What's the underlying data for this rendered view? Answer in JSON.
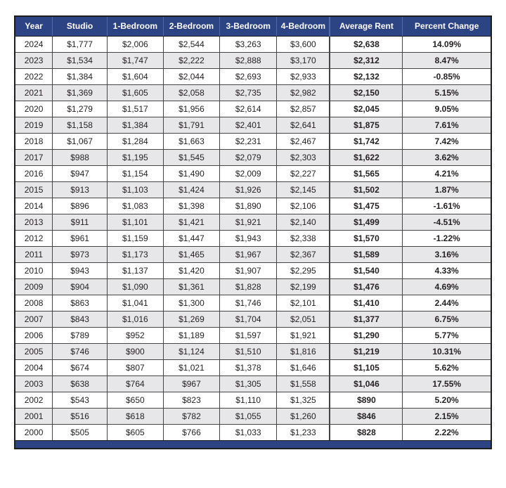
{
  "colors": {
    "header_bg": "#2c4384",
    "header_divider": "#5568a8",
    "row_alt_bg": "#e7e7ea",
    "grid_line": "#454545",
    "outer_border": "#1d1d1f",
    "text": "#231f20",
    "footer_bar": "#2c4384"
  },
  "chart_data": {
    "type": "table",
    "columns": [
      "Year",
      "Studio",
      "1-Bedroom",
      "2-Bedroom",
      "3-Bedroom",
      "4-Bedroom",
      "Average Rent",
      "Percent Change"
    ],
    "rows": [
      [
        "2024",
        "$1,777",
        "$2,006",
        "$2,544",
        "$3,263",
        "$3,600",
        "$2,638",
        "14.09%"
      ],
      [
        "2023",
        "$1,534",
        "$1,747",
        "$2,222",
        "$2,888",
        "$3,170",
        "$2,312",
        "8.47%"
      ],
      [
        "2022",
        "$1,384",
        "$1,604",
        "$2,044",
        "$2,693",
        "$2,933",
        "$2,132",
        "-0.85%"
      ],
      [
        "2021",
        "$1,369",
        "$1,605",
        "$2,058",
        "$2,735",
        "$2,982",
        "$2,150",
        "5.15%"
      ],
      [
        "2020",
        "$1,279",
        "$1,517",
        "$1,956",
        "$2,614",
        "$2,857",
        "$2,045",
        "9.05%"
      ],
      [
        "2019",
        "$1,158",
        "$1,384",
        "$1,791",
        "$2,401",
        "$2,641",
        "$1,875",
        "7.61%"
      ],
      [
        "2018",
        "$1,067",
        "$1,284",
        "$1,663",
        "$2,231",
        "$2,467",
        "$1,742",
        "7.42%"
      ],
      [
        "2017",
        "$988",
        "$1,195",
        "$1,545",
        "$2,079",
        "$2,303",
        "$1,622",
        "3.62%"
      ],
      [
        "2016",
        "$947",
        "$1,154",
        "$1,490",
        "$2,009",
        "$2,227",
        "$1,565",
        "4.21%"
      ],
      [
        "2015",
        "$913",
        "$1,103",
        "$1,424",
        "$1,926",
        "$2,145",
        "$1,502",
        "1.87%"
      ],
      [
        "2014",
        "$896",
        "$1,083",
        "$1,398",
        "$1,890",
        "$2,106",
        "$1,475",
        "-1.61%"
      ],
      [
        "2013",
        "$911",
        "$1,101",
        "$1,421",
        "$1,921",
        "$2,140",
        "$1,499",
        "-4.51%"
      ],
      [
        "2012",
        "$961",
        "$1,159",
        "$1,447",
        "$1,943",
        "$2,338",
        "$1,570",
        "-1.22%"
      ],
      [
        "2011",
        "$973",
        "$1,173",
        "$1,465",
        "$1,967",
        "$2,367",
        "$1,589",
        "3.16%"
      ],
      [
        "2010",
        "$943",
        "$1,137",
        "$1,420",
        "$1,907",
        "$2,295",
        "$1,540",
        "4.33%"
      ],
      [
        "2009",
        "$904",
        "$1,090",
        "$1,361",
        "$1,828",
        "$2,199",
        "$1,476",
        "4.69%"
      ],
      [
        "2008",
        "$863",
        "$1,041",
        "$1,300",
        "$1,746",
        "$2,101",
        "$1,410",
        "2.44%"
      ],
      [
        "2007",
        "$843",
        "$1,016",
        "$1,269",
        "$1,704",
        "$2,051",
        "$1,377",
        "6.75%"
      ],
      [
        "2006",
        "$789",
        "$952",
        "$1,189",
        "$1,597",
        "$1,921",
        "$1,290",
        "5.77%"
      ],
      [
        "2005",
        "$746",
        "$900",
        "$1,124",
        "$1,510",
        "$1,816",
        "$1,219",
        "10.31%"
      ],
      [
        "2004",
        "$674",
        "$807",
        "$1,021",
        "$1,378",
        "$1,646",
        "$1,105",
        "5.62%"
      ],
      [
        "2003",
        "$638",
        "$764",
        "$967",
        "$1,305",
        "$1,558",
        "$1,046",
        "17.55%"
      ],
      [
        "2002",
        "$543",
        "$650",
        "$823",
        "$1,110",
        "$1,325",
        "$890",
        "5.20%"
      ],
      [
        "2001",
        "$516",
        "$618",
        "$782",
        "$1,055",
        "$1,260",
        "$846",
        "2.15%"
      ],
      [
        "2000",
        "$505",
        "$605",
        "$766",
        "$1,033",
        "$1,233",
        "$828",
        "2.22%"
      ]
    ],
    "layout": {
      "striped_rows": true,
      "bold_columns": [
        "Average Rent",
        "Percent Change"
      ],
      "footer_bar": true
    }
  }
}
